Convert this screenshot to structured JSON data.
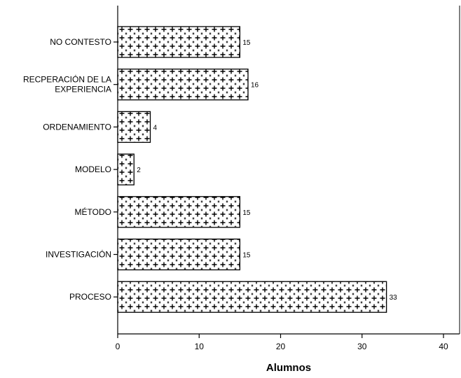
{
  "chart_data": {
    "type": "bar",
    "orientation": "horizontal",
    "title": "",
    "xlabel": "Alumnos",
    "ylabel": "",
    "xlim": [
      0,
      42
    ],
    "xticks": [
      0,
      10,
      20,
      30,
      40
    ],
    "grid": false,
    "legend": "none",
    "categories": [
      [
        "NO CONTESTO"
      ],
      [
        "RECPERACIÓN DE LA",
        "EXPERIENCIA"
      ],
      [
        "ORDENAMIENTO"
      ],
      [
        "MODELO"
      ],
      [
        "MÉTODO"
      ],
      [
        "INVESTIGACIÓN"
      ],
      [
        "PROCESO"
      ]
    ],
    "values": [
      15,
      16,
      4,
      2,
      15,
      15,
      33
    ],
    "data_labels": [
      "15",
      "16",
      "4",
      "2",
      "15",
      "15",
      "33"
    ],
    "bar_pattern": "crosshatch-plus",
    "colors": {
      "bar_fill": "#ffffff",
      "bar_pattern": "#000000",
      "axis": "#000000"
    }
  }
}
